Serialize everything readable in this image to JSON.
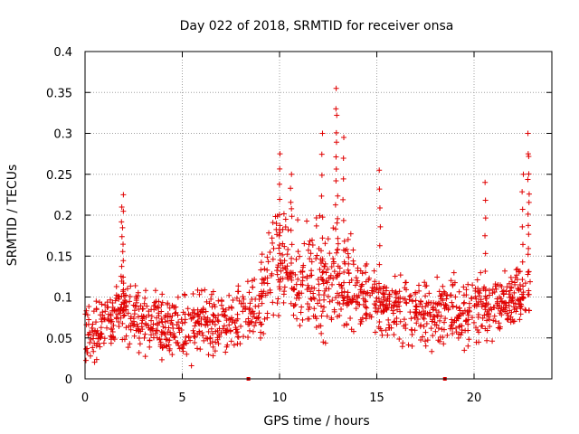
{
  "chart_data": {
    "type": "scatter",
    "title": "Day 022 of 2018, SRMTID for receiver onsa",
    "xlabel": "GPS time / hours",
    "ylabel": "SRMTID / TECUs",
    "xlim": [
      0,
      24
    ],
    "ylim": [
      0,
      0.4
    ],
    "xticks": [
      0,
      5,
      10,
      15,
      20
    ],
    "xtick_labels": [
      "0",
      "5",
      "10",
      "15",
      "20"
    ],
    "yticks": [
      0,
      0.05,
      0.1,
      0.15,
      0.2,
      0.25,
      0.3,
      0.35,
      0.4
    ],
    "ytick_labels": [
      "0",
      "0.05",
      "0.1",
      "0.15",
      "0.2",
      "0.25",
      "0.3",
      "0.35",
      "0.4"
    ],
    "grid": true,
    "marker": "+",
    "color": "#e00000",
    "gap_markers_x": [
      8.4,
      18.5
    ],
    "series": [
      {
        "name": "SRMTID",
        "note": "Dense cloud of points; baseline profile and notable spikes estimated from the plot",
        "profile": [
          {
            "x": 0.0,
            "y": 0.055
          },
          {
            "x": 1.0,
            "y": 0.065
          },
          {
            "x": 2.0,
            "y": 0.085
          },
          {
            "x": 3.0,
            "y": 0.07
          },
          {
            "x": 4.0,
            "y": 0.065
          },
          {
            "x": 5.0,
            "y": 0.06
          },
          {
            "x": 6.0,
            "y": 0.065
          },
          {
            "x": 7.0,
            "y": 0.07
          },
          {
            "x": 8.0,
            "y": 0.07
          },
          {
            "x": 9.0,
            "y": 0.09
          },
          {
            "x": 9.5,
            "y": 0.13
          },
          {
            "x": 10.0,
            "y": 0.145
          },
          {
            "x": 11.0,
            "y": 0.12
          },
          {
            "x": 12.0,
            "y": 0.12
          },
          {
            "x": 13.0,
            "y": 0.125
          },
          {
            "x": 14.0,
            "y": 0.1
          },
          {
            "x": 15.0,
            "y": 0.095
          },
          {
            "x": 16.0,
            "y": 0.085
          },
          {
            "x": 17.0,
            "y": 0.08
          },
          {
            "x": 18.0,
            "y": 0.08
          },
          {
            "x": 19.0,
            "y": 0.085
          },
          {
            "x": 20.0,
            "y": 0.085
          },
          {
            "x": 21.0,
            "y": 0.09
          },
          {
            "x": 22.0,
            "y": 0.095
          },
          {
            "x": 23.0,
            "y": 0.105
          }
        ],
        "spikes": [
          {
            "x": 1.95,
            "y": 0.225
          },
          {
            "x": 1.9,
            "y": 0.21
          },
          {
            "x": 10.0,
            "y": 0.275
          },
          {
            "x": 10.6,
            "y": 0.25
          },
          {
            "x": 12.2,
            "y": 0.3
          },
          {
            "x": 12.95,
            "y": 0.355
          },
          {
            "x": 12.9,
            "y": 0.33
          },
          {
            "x": 13.3,
            "y": 0.295
          },
          {
            "x": 15.15,
            "y": 0.255
          },
          {
            "x": 20.6,
            "y": 0.24
          },
          {
            "x": 22.8,
            "y": 0.3
          },
          {
            "x": 22.8,
            "y": 0.275
          },
          {
            "x": 22.5,
            "y": 0.25
          }
        ]
      }
    ]
  }
}
